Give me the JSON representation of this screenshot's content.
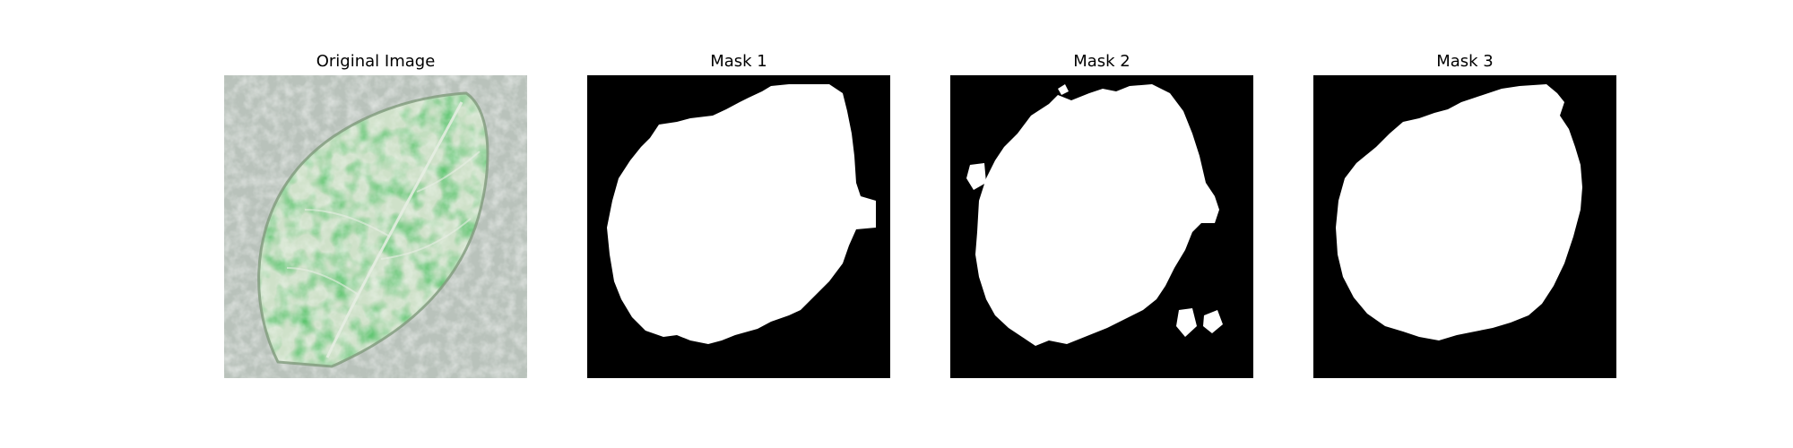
{
  "figure": {
    "panels": [
      {
        "title": "Original Image",
        "content": "leaf-photo"
      },
      {
        "title": "Mask 1",
        "content": "binary-mask"
      },
      {
        "title": "Mask 2",
        "content": "binary-mask"
      },
      {
        "title": "Mask 3",
        "content": "binary-mask"
      }
    ]
  },
  "colors": {
    "mask_background": "#000000",
    "mask_foreground": "#ffffff",
    "leaf_green": "#2e9b35",
    "photo_background": "#b9c2bb"
  }
}
